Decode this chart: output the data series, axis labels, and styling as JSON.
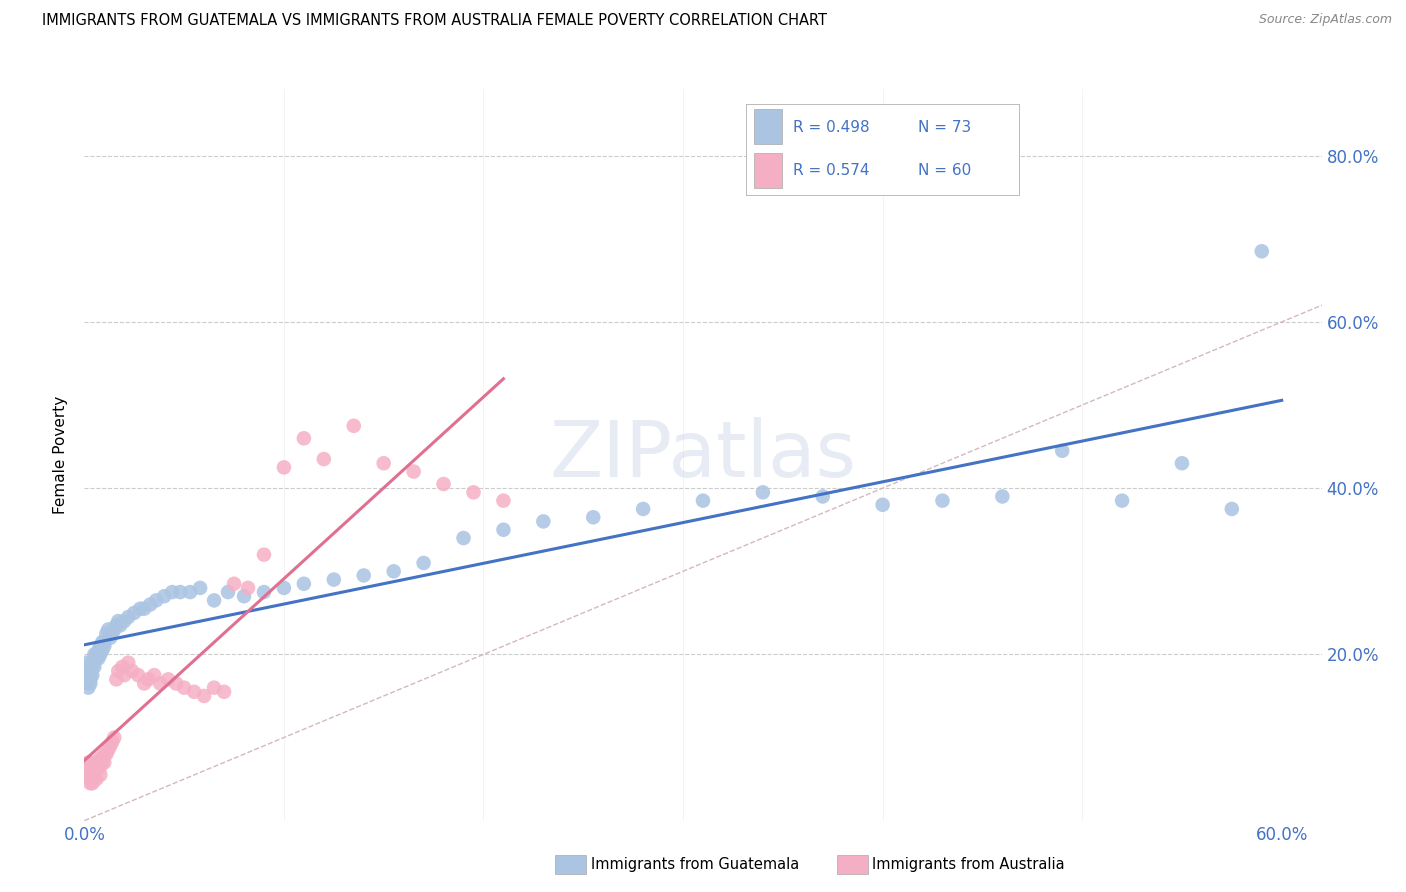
{
  "title": "IMMIGRANTS FROM GUATEMALA VS IMMIGRANTS FROM AUSTRALIA FEMALE POVERTY CORRELATION CHART",
  "source": "Source: ZipAtlas.com",
  "ylabel_label": "Female Poverty",
  "series1_label": "Immigrants from Guatemala",
  "series2_label": "Immigrants from Australia",
  "series1_color": "#aac4e2",
  "series2_color": "#f5afc4",
  "series1_line_color": "#4472c4",
  "series2_line_color": "#e07090",
  "diagonal_color": "#d0b0b8",
  "xlim": [
    0.0,
    0.62
  ],
  "ylim": [
    0.0,
    0.88
  ],
  "yticks": [
    0.0,
    0.2,
    0.4,
    0.6,
    0.8
  ],
  "ytick_labels": [
    "",
    "20.0%",
    "40.0%",
    "60.0%",
    "80.0%"
  ],
  "xtick_left_label": "0.0%",
  "xtick_right_label": "60.0%",
  "legend_r1": "R = 0.498",
  "legend_n1": "N = 73",
  "legend_r2": "R = 0.574",
  "legend_n2": "N = 60",
  "legend_color": "#4472c4",
  "watermark": "ZIPatlas",
  "guatemala_x": [
    0.001,
    0.001,
    0.001,
    0.002,
    0.002,
    0.002,
    0.002,
    0.003,
    0.003,
    0.003,
    0.003,
    0.004,
    0.004,
    0.004,
    0.005,
    0.005,
    0.005,
    0.006,
    0.006,
    0.007,
    0.007,
    0.008,
    0.008,
    0.009,
    0.009,
    0.01,
    0.01,
    0.011,
    0.012,
    0.013,
    0.014,
    0.015,
    0.016,
    0.017,
    0.018,
    0.02,
    0.022,
    0.025,
    0.028,
    0.03,
    0.033,
    0.036,
    0.04,
    0.044,
    0.048,
    0.053,
    0.058,
    0.065,
    0.072,
    0.08,
    0.09,
    0.1,
    0.11,
    0.125,
    0.14,
    0.155,
    0.17,
    0.19,
    0.21,
    0.23,
    0.255,
    0.28,
    0.31,
    0.34,
    0.37,
    0.4,
    0.43,
    0.46,
    0.49,
    0.52,
    0.55,
    0.575,
    0.59
  ],
  "guatemala_y": [
    0.185,
    0.19,
    0.175,
    0.165,
    0.17,
    0.18,
    0.16,
    0.17,
    0.175,
    0.18,
    0.165,
    0.185,
    0.19,
    0.175,
    0.195,
    0.2,
    0.185,
    0.195,
    0.2,
    0.205,
    0.195,
    0.2,
    0.21,
    0.205,
    0.215,
    0.21,
    0.215,
    0.225,
    0.23,
    0.22,
    0.225,
    0.23,
    0.235,
    0.24,
    0.235,
    0.24,
    0.245,
    0.25,
    0.255,
    0.255,
    0.26,
    0.265,
    0.27,
    0.275,
    0.275,
    0.275,
    0.28,
    0.265,
    0.275,
    0.27,
    0.275,
    0.28,
    0.285,
    0.29,
    0.295,
    0.3,
    0.31,
    0.34,
    0.35,
    0.36,
    0.365,
    0.375,
    0.385,
    0.395,
    0.39,
    0.38,
    0.385,
    0.39,
    0.445,
    0.385,
    0.43,
    0.375,
    0.685
  ],
  "australia_x": [
    0.001,
    0.001,
    0.002,
    0.002,
    0.002,
    0.003,
    0.003,
    0.003,
    0.004,
    0.004,
    0.004,
    0.005,
    0.005,
    0.005,
    0.006,
    0.006,
    0.007,
    0.007,
    0.008,
    0.008,
    0.008,
    0.009,
    0.009,
    0.01,
    0.01,
    0.011,
    0.012,
    0.013,
    0.014,
    0.015,
    0.016,
    0.017,
    0.019,
    0.02,
    0.022,
    0.024,
    0.027,
    0.03,
    0.032,
    0.035,
    0.038,
    0.042,
    0.046,
    0.05,
    0.055,
    0.06,
    0.065,
    0.07,
    0.075,
    0.082,
    0.09,
    0.1,
    0.11,
    0.12,
    0.135,
    0.15,
    0.165,
    0.18,
    0.195,
    0.21
  ],
  "australia_y": [
    0.065,
    0.055,
    0.06,
    0.07,
    0.055,
    0.045,
    0.05,
    0.06,
    0.055,
    0.065,
    0.045,
    0.06,
    0.07,
    0.055,
    0.065,
    0.05,
    0.065,
    0.07,
    0.075,
    0.065,
    0.055,
    0.07,
    0.075,
    0.08,
    0.07,
    0.08,
    0.085,
    0.09,
    0.095,
    0.1,
    0.17,
    0.18,
    0.185,
    0.175,
    0.19,
    0.18,
    0.175,
    0.165,
    0.17,
    0.175,
    0.165,
    0.17,
    0.165,
    0.16,
    0.155,
    0.15,
    0.16,
    0.155,
    0.285,
    0.28,
    0.32,
    0.425,
    0.46,
    0.435,
    0.475,
    0.43,
    0.42,
    0.405,
    0.395,
    0.385
  ]
}
